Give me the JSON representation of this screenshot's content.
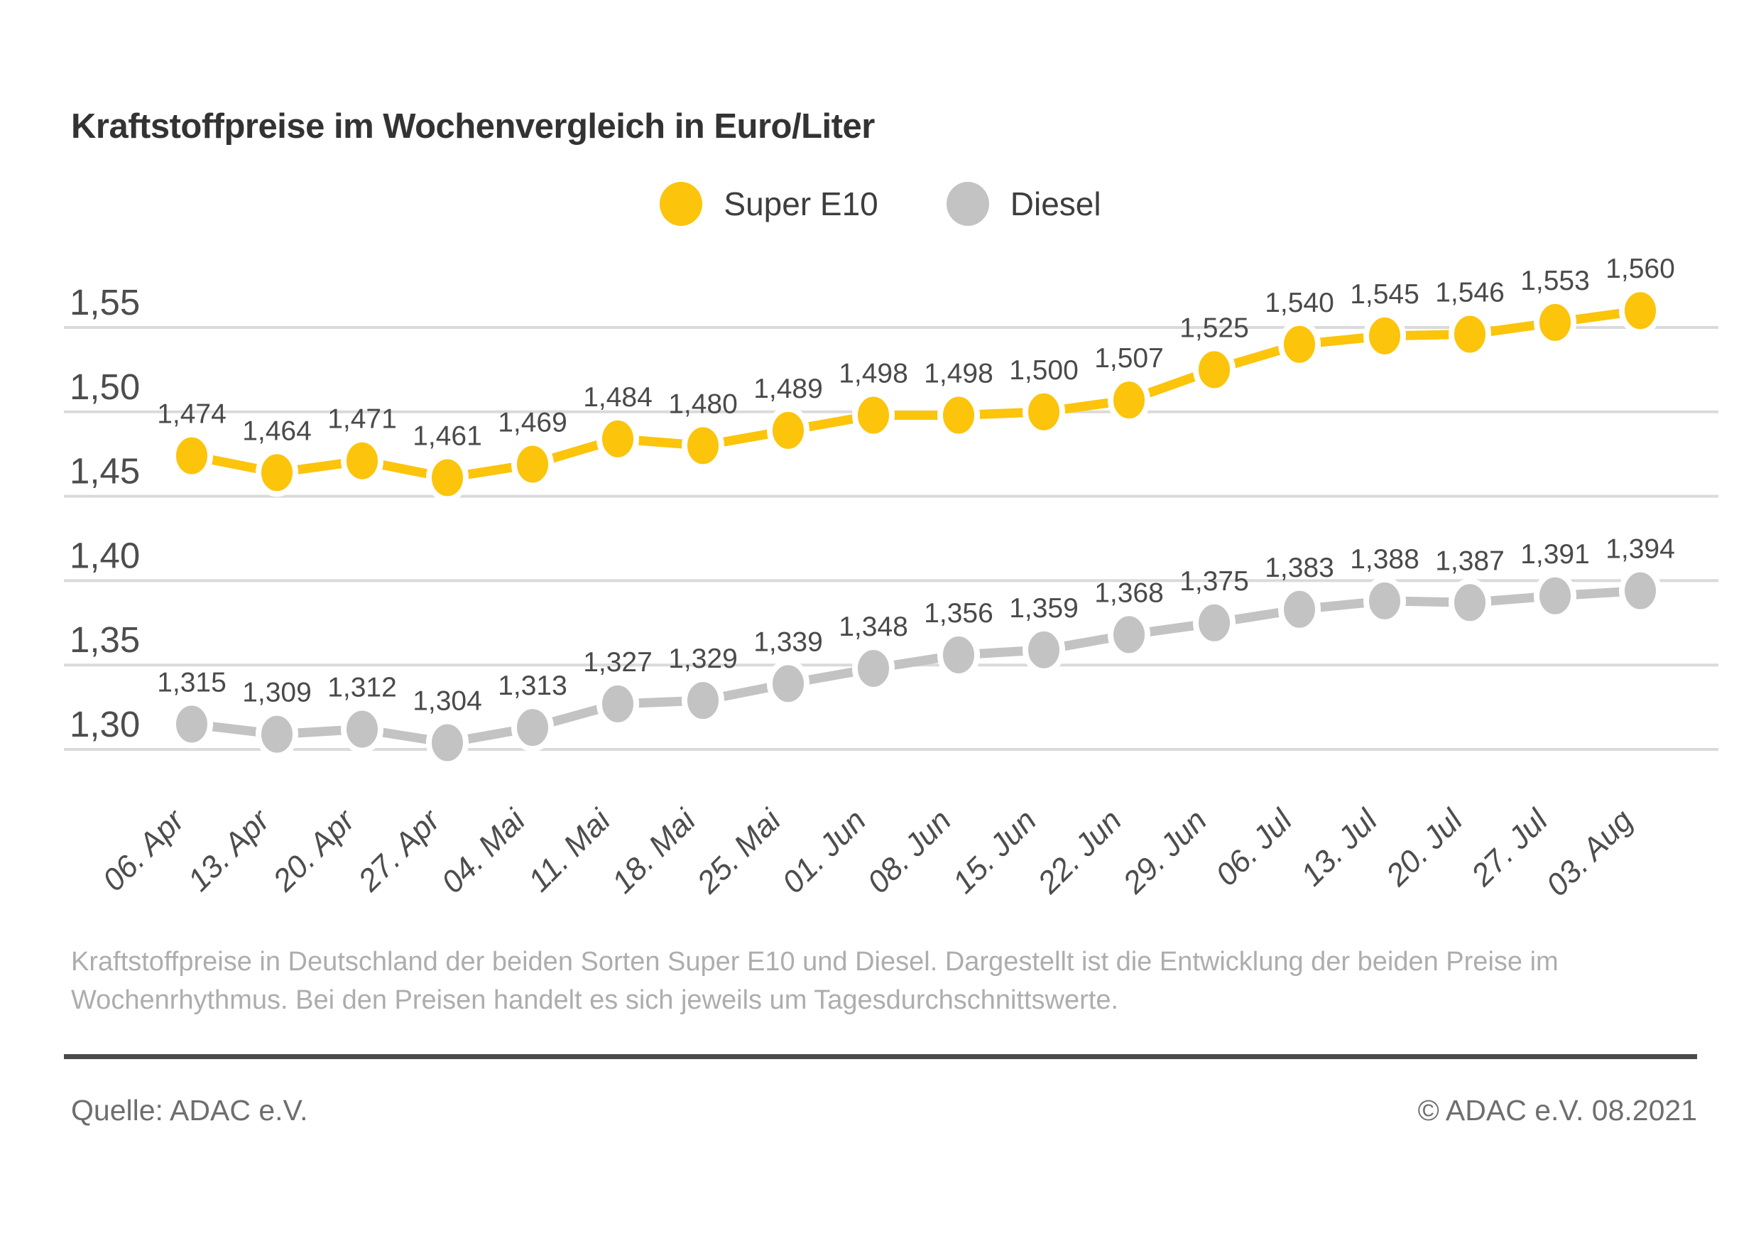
{
  "title": "Kraftstoffpreise im Wochenvergleich in Euro/Liter",
  "description": "Kraftstoffpreise in Deutschland der beiden Sorten Super E10 und Diesel. Dargestellt ist die Entwicklung der beiden Preise im Wochenrhythmus. Bei den Preisen handelt es sich jeweils um Tagesdurchschnittswerte.",
  "footer": {
    "source": "Quelle: ADAC e.V.",
    "copyright": "© ADAC e.V. 08.2021"
  },
  "colors": {
    "super_e10": "#fcc40b",
    "diesel": "#c3c3c3",
    "grid": "#dadada",
    "text_dark": "#333333",
    "text_medium": "#4d4d4d",
    "text_light": "#adadad",
    "footer_text": "#6e6e6e"
  },
  "chart_data": {
    "type": "line",
    "title": "Kraftstoffpreise im Wochenvergleich in Euro/Liter",
    "xlabel": "",
    "ylabel": "Euro/Liter",
    "grid": true,
    "legend_position": "top-center",
    "decimal_separator": ",",
    "ylim": [
      1.28,
      1.57
    ],
    "yticks": [
      1.3,
      1.35,
      1.4,
      1.45,
      1.5,
      1.55
    ],
    "ytick_labels": [
      "1,30",
      "1,35",
      "1,40",
      "1,45",
      "1,50",
      "1,55"
    ],
    "categories": [
      "06. Apr",
      "13. Apr",
      "20. Apr",
      "27. Apr",
      "04. Mai",
      "11. Mai",
      "18. Mai",
      "25. Mai",
      "01. Jun",
      "08. Jun",
      "15. Jun",
      "22. Jun",
      "29. Jun",
      "06. Jul",
      "13. Jul",
      "20. Jul",
      "27. Jul",
      "03. Aug"
    ],
    "series": [
      {
        "name": "Super E10",
        "color": "#fcc40b",
        "values": [
          1.474,
          1.464,
          1.471,
          1.461,
          1.469,
          1.484,
          1.48,
          1.489,
          1.498,
          1.498,
          1.5,
          1.507,
          1.525,
          1.54,
          1.545,
          1.546,
          1.553,
          1.56
        ],
        "labels": [
          "1,474",
          "1,464",
          "1,471",
          "1,461",
          "1,469",
          "1,484",
          "1,480",
          "1,489",
          "1,498",
          "1,498",
          "1,500",
          "1,507",
          "1,525",
          "1,540",
          "1,545",
          "1,546",
          "1,553",
          "1,560"
        ]
      },
      {
        "name": "Diesel",
        "color": "#c3c3c3",
        "values": [
          1.315,
          1.309,
          1.312,
          1.304,
          1.313,
          1.327,
          1.329,
          1.339,
          1.348,
          1.356,
          1.359,
          1.368,
          1.375,
          1.383,
          1.388,
          1.387,
          1.391,
          1.394
        ],
        "labels": [
          "1,315",
          "1,309",
          "1,312",
          "1,304",
          "1,313",
          "1,327",
          "1,329",
          "1,339",
          "1,348",
          "1,356",
          "1,359",
          "1,368",
          "1,375",
          "1,383",
          "1,388",
          "1,387",
          "1,391",
          "1,394"
        ]
      }
    ]
  }
}
